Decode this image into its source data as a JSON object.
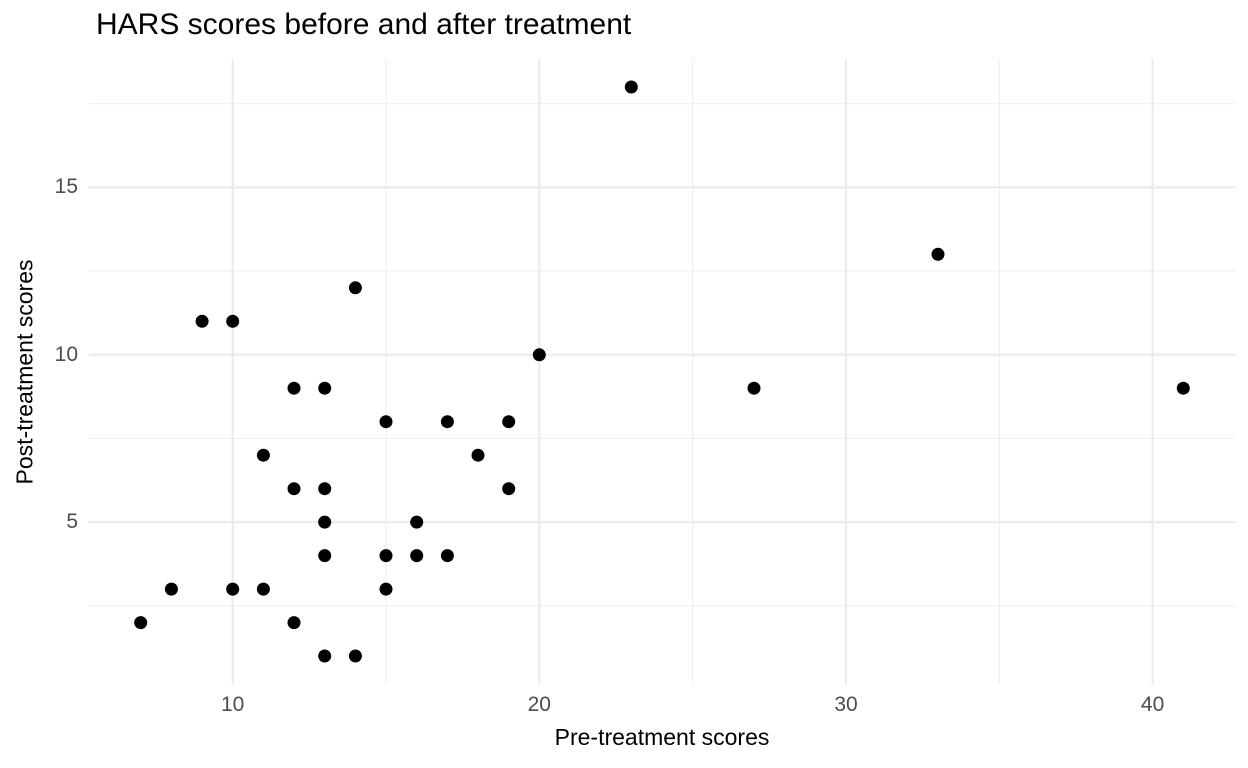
{
  "title": "HARS scores before and after treatment",
  "chart_data": {
    "type": "scatter",
    "title": "HARS scores before and after treatment",
    "xlabel": "Pre-treatment scores",
    "ylabel": "Post-treatment scores",
    "x_ticks": [
      10,
      20,
      30,
      40
    ],
    "y_ticks": [
      5,
      10,
      15
    ],
    "x_minor_gridlines": [
      15,
      25,
      35
    ],
    "y_minor_gridlines": [
      2.5,
      7.5,
      12.5,
      17.5
    ],
    "xlim": [
      5.3,
      42.7
    ],
    "ylim": [
      0.15,
      18.85
    ],
    "grid": "on",
    "legend_position": "none",
    "points": [
      [
        7,
        2
      ],
      [
        8,
        3
      ],
      [
        9,
        11
      ],
      [
        10,
        3
      ],
      [
        10,
        11
      ],
      [
        11,
        3
      ],
      [
        11,
        7
      ],
      [
        12,
        2
      ],
      [
        12,
        6
      ],
      [
        12,
        9
      ],
      [
        13,
        1
      ],
      [
        13,
        4
      ],
      [
        13,
        5
      ],
      [
        13,
        6
      ],
      [
        13,
        9
      ],
      [
        14,
        1
      ],
      [
        14,
        12
      ],
      [
        15,
        3
      ],
      [
        15,
        4
      ],
      [
        15,
        8
      ],
      [
        16,
        4
      ],
      [
        16,
        5
      ],
      [
        17,
        4
      ],
      [
        17,
        8
      ],
      [
        18,
        7
      ],
      [
        19,
        6
      ],
      [
        19,
        8
      ],
      [
        20,
        10
      ],
      [
        23,
        18
      ],
      [
        27,
        9
      ],
      [
        33,
        13
      ],
      [
        41,
        9
      ]
    ],
    "point_color": "#000000",
    "point_radius_px": 6.5,
    "background_color": "#ffffff",
    "grid_major_color": "#ebebeb",
    "grid_minor_color": "#efefef",
    "tick_label_color": "#4d4d4d",
    "title_color": "#000000",
    "axis_title_color": "#000000"
  }
}
